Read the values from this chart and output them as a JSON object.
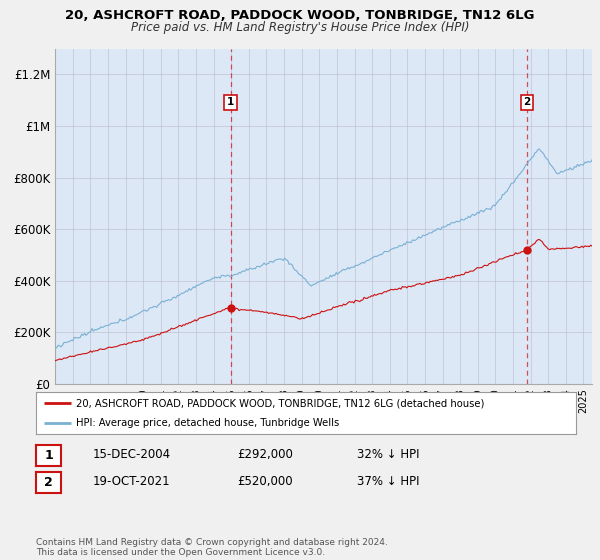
{
  "title_line1": "20, ASHCROFT ROAD, PADDOCK WOOD, TONBRIDGE, TN12 6LG",
  "title_line2": "Price paid vs. HM Land Registry's House Price Index (HPI)",
  "hpi_color": "#7ab0d4",
  "price_color": "#cc1111",
  "sale1_x": 2004.96,
  "sale1_y": 292000,
  "sale2_x": 2021.79,
  "sale2_y": 520000,
  "vline_color": "#cc1111",
  "legend_entry1": "20, ASHCROFT ROAD, PADDOCK WOOD, TONBRIDGE, TN12 6LG (detached house)",
  "legend_entry2": "HPI: Average price, detached house, Tunbridge Wells",
  "table_row1": [
    "1",
    "15-DEC-2004",
    "£292,000",
    "32% ↓ HPI"
  ],
  "table_row2": [
    "2",
    "19-OCT-2021",
    "£520,000",
    "37% ↓ HPI"
  ],
  "footer": "Contains HM Land Registry data © Crown copyright and database right 2024.\nThis data is licensed under the Open Government Licence v3.0.",
  "bg_color": "#f0f0f0",
  "plot_bg_color": "#dce8f5",
  "grid_color": "#bbbbcc",
  "xmin": 1995.0,
  "xmax": 2025.5,
  "ymin": 0,
  "ymax": 1300000,
  "yticks": [
    0,
    200000,
    400000,
    600000,
    800000,
    1000000,
    1200000
  ],
  "ytick_labels": [
    "£0",
    "£200K",
    "£400K",
    "£600K",
    "£800K",
    "£1M",
    "£1.2M"
  ]
}
